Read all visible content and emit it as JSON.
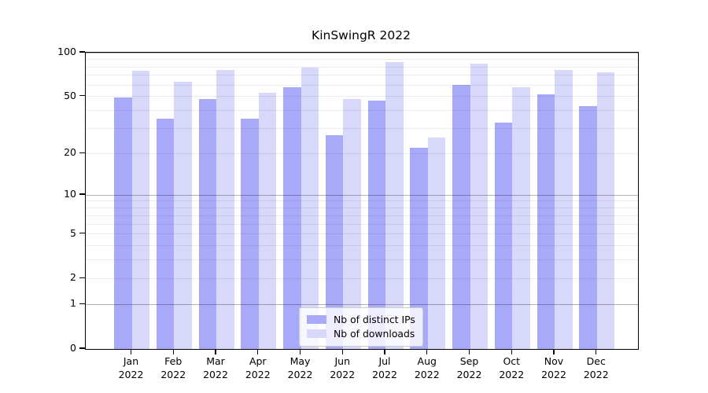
{
  "figure": {
    "background": "#ffffff"
  },
  "chart_data": {
    "type": "bar",
    "title": "KinSwingR 2022",
    "categories": [
      "Jan 2022",
      "Feb 2022",
      "Mar 2022",
      "Apr 2022",
      "May 2022",
      "Jun 2022",
      "Jul 2022",
      "Aug 2022",
      "Sep 2022",
      "Oct 2022",
      "Nov 2022",
      "Dec 2022"
    ],
    "series": [
      {
        "name": "Nb of distinct IPs",
        "color": "#a9a9fa",
        "values": [
          49,
          35,
          48,
          35,
          58,
          27,
          47,
          22,
          60,
          33,
          52,
          43
        ]
      },
      {
        "name": "Nb of downloads",
        "color": "#d8d8fa",
        "values": [
          75,
          63,
          76,
          53,
          79,
          48,
          86,
          26,
          84,
          58,
          76,
          73
        ]
      }
    ],
    "xlabel": "",
    "ylabel": "",
    "yscale": "log1p",
    "ylim": [
      0,
      100
    ],
    "yticks": [
      100,
      50,
      20,
      10,
      5,
      2,
      1,
      0
    ],
    "major_gridlines": [
      1,
      10,
      100
    ],
    "minor_gridlines": [
      2,
      3,
      4,
      5,
      6,
      7,
      8,
      9,
      20,
      30,
      40,
      50,
      60,
      70,
      80,
      90
    ],
    "grid": true,
    "legend_position": "lower center"
  }
}
